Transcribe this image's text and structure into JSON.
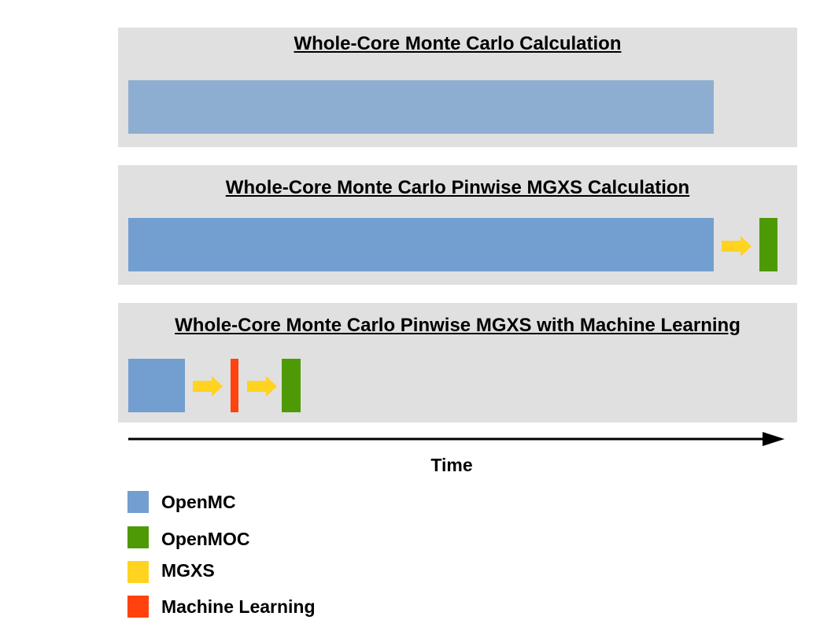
{
  "panels": [
    {
      "title": "Whole-Core Monte Carlo Calculation"
    },
    {
      "title": "Whole-Core Monte Carlo Pinwise MGXS Calculation"
    },
    {
      "title": "Whole-Core Monte Carlo Pinwise MGXS with Machine Learning"
    }
  ],
  "axis": {
    "label": "Time"
  },
  "legend": [
    {
      "label": "OpenMC",
      "color": "#729fcf"
    },
    {
      "label": "OpenMOC",
      "color": "#4e9a06"
    },
    {
      "label": "MGXS",
      "color": "#ffd320"
    },
    {
      "label": "Machine Learning",
      "color": "#ff420e"
    }
  ],
  "colors": {
    "openmc_light": "#8eaed1",
    "openmc": "#729fcf",
    "openmoc": "#4e9a06",
    "mgxs": "#ffd320",
    "ml": "#ff420e",
    "panel_bg": "#e0e0e0"
  }
}
